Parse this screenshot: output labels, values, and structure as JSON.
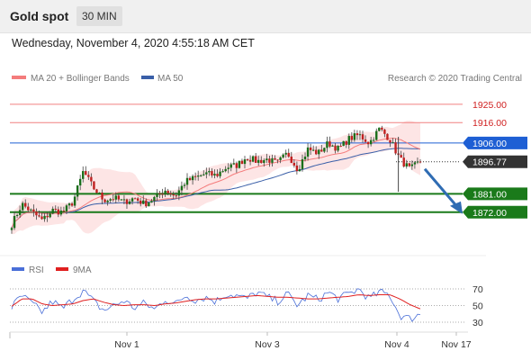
{
  "header": {
    "title": "Gold spot",
    "timeframe": "30 MIN"
  },
  "timestamp": "Wednesday, November 4, 2020 4:55:18 AM CET",
  "legend": {
    "ma20": "MA 20 + Bollinger Bands",
    "ma50": "MA 50",
    "credit": "Research © 2020 Trading Central"
  },
  "rsi_legend": {
    "rsi": "RSI",
    "ma": "9MA"
  },
  "colors": {
    "resistance_light": "#f08080",
    "resistance_pivot": "#1e5fd4",
    "support": "#1a7a1a",
    "price_box": "#333333",
    "ma20": "#f47c7c",
    "ma50": "#3a5fa8",
    "bb": "#fde0e0",
    "arrow": "#2f6cb3",
    "rsi": "#4a6fd8",
    "rsi_ma": "#e02020",
    "candle_up": "#1a6e1a",
    "candle_down": "#c02020"
  },
  "chart_data": [
    {
      "type": "candlestick",
      "title": "Gold spot",
      "timeframe": "30 MIN",
      "xlabel": "",
      "ylabel": "",
      "x_ticks": [
        "Nov 1",
        "Nov 3",
        "Nov 4",
        "Nov 17"
      ],
      "ylim": [
        1856,
        1932
      ],
      "levels": [
        {
          "label": "1925.00",
          "value": 1925.0,
          "kind": "resistance"
        },
        {
          "label": "1916.00",
          "value": 1916.0,
          "kind": "resistance"
        },
        {
          "label": "1906.00",
          "value": 1906.0,
          "kind": "pivot"
        },
        {
          "label": "1896.77",
          "value": 1896.77,
          "kind": "last-price"
        },
        {
          "label": "1881.00",
          "value": 1881.0,
          "kind": "support"
        },
        {
          "label": "1872.00",
          "value": 1872.0,
          "kind": "support"
        }
      ],
      "price_path": [
        1866,
        1876,
        1872,
        1868,
        1873,
        1872,
        1877,
        1892,
        1884,
        1878,
        1879,
        1877,
        1879,
        1876,
        1879,
        1883,
        1880,
        1887,
        1889,
        1891,
        1890,
        1894,
        1895,
        1899,
        1897,
        1898,
        1896,
        1901,
        1893,
        1903,
        1901,
        1906,
        1903,
        1908,
        1910,
        1906,
        1913,
        1908,
        1898,
        1893,
        1897
      ],
      "projection": {
        "from": 1896.77,
        "to": 1872.0
      }
    },
    {
      "type": "line",
      "title": "RSI",
      "series": [
        {
          "name": "RSI"
        },
        {
          "name": "9MA"
        }
      ],
      "y_ticks": [
        70,
        50,
        30
      ],
      "ylim": [
        25,
        75
      ],
      "rsi_path": [
        48,
        62,
        52,
        42,
        55,
        46,
        58,
        68,
        55,
        44,
        50,
        56,
        47,
        53,
        45,
        58,
        51,
        62,
        57,
        60,
        55,
        64,
        62,
        58,
        66,
        60,
        55,
        64,
        50,
        62,
        57,
        66,
        58,
        64,
        70,
        58,
        66,
        63,
        38,
        34,
        40
      ],
      "ma_path": [
        49,
        58,
        58,
        52,
        50,
        51,
        52,
        56,
        58,
        54,
        51,
        50,
        51,
        51,
        50,
        52,
        53,
        55,
        57,
        58,
        58,
        59,
        60,
        61,
        62,
        61,
        60,
        60,
        59,
        58,
        58,
        59,
        60,
        61,
        63,
        62,
        63,
        63,
        58,
        51,
        46
      ]
    }
  ]
}
